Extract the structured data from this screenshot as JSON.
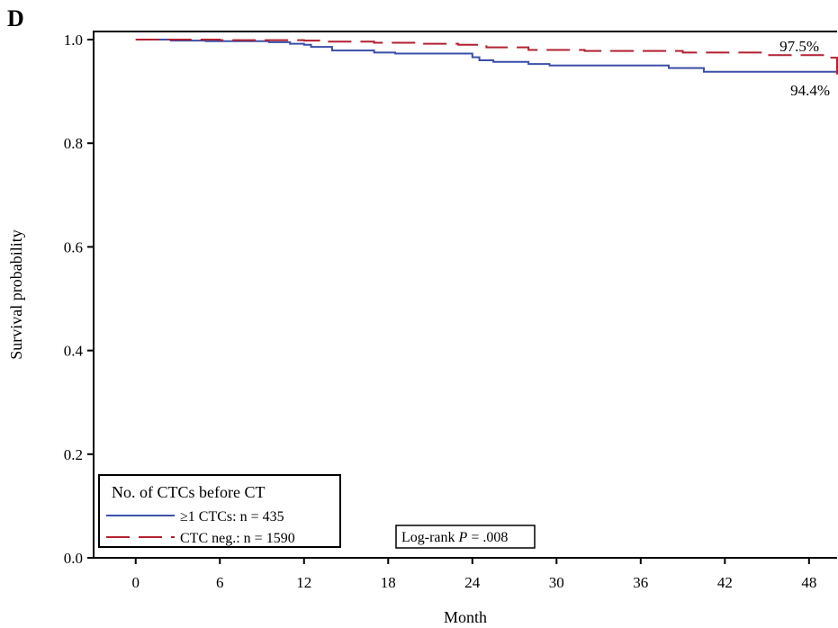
{
  "panel_label": "D",
  "chart_data": {
    "type": "line",
    "title": "",
    "xlabel": "Month",
    "ylabel": "Survival probability",
    "xlim": [
      -3,
      50
    ],
    "ylim": [
      0,
      1.0
    ],
    "xticks": [
      0,
      6,
      12,
      18,
      24,
      30,
      36,
      42,
      48
    ],
    "xtick_labels": [
      "0",
      "6",
      "12",
      "18",
      "24",
      "30",
      "36",
      "42",
      "48"
    ],
    "yticks": [
      0.0,
      0.2,
      0.4,
      0.6,
      0.8,
      1.0
    ],
    "ytick_labels": [
      "0.0",
      "0.2",
      "0.4",
      "0.6",
      "0.8",
      "1.0"
    ],
    "grid": false,
    "step": true,
    "legend": {
      "title": "No. of CTCs before CT",
      "placement": "bottom-left",
      "entries": [
        "≥1 CTCs: n = 435",
        "CTC neg.: n = 1590"
      ]
    },
    "annotation": {
      "prefix": "Log-rank ",
      "p_symbol": "P",
      "suffix": " = .008"
    },
    "series": [
      {
        "name": "≥1 CTCs: n = 435",
        "color": "#3a4fa8",
        "dash": "solid",
        "end_label": "94.4%",
        "x": [
          0,
          2.5,
          5,
          9.5,
          11,
          12,
          12.5,
          14,
          17,
          18.5,
          24,
          24.5,
          25.5,
          28,
          29.5,
          38,
          40.5,
          50
        ],
        "y": [
          1.0,
          0.998,
          0.997,
          0.995,
          0.992,
          0.99,
          0.986,
          0.979,
          0.975,
          0.973,
          0.966,
          0.96,
          0.957,
          0.953,
          0.95,
          0.945,
          0.938,
          0.938
        ]
      },
      {
        "name": "CTC neg.: n = 1590",
        "color": "#b22030",
        "dash": "dashed",
        "end_label": "97.5%",
        "x": [
          0,
          6,
          12,
          13.5,
          17,
          20,
          23,
          25,
          28,
          32,
          39,
          45,
          49.5,
          50
        ],
        "y": [
          1.0,
          0.999,
          0.998,
          0.996,
          0.994,
          0.992,
          0.99,
          0.985,
          0.98,
          0.978,
          0.975,
          0.97,
          0.965,
          0.925
        ]
      }
    ]
  }
}
